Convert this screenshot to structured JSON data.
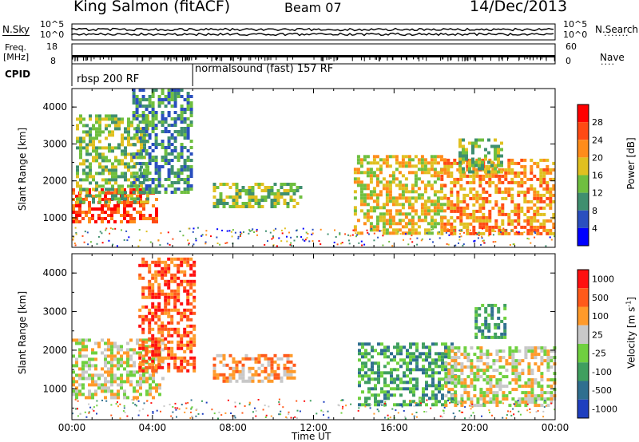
{
  "header": {
    "station": "King Salmon (fitACF)",
    "beam": "Beam 07",
    "date": "14/Dec/2013"
  },
  "chart_data": [
    {
      "type": "line",
      "panel": "noise",
      "left_label": "N.Sky",
      "right_label": "N.Search",
      "left_ticks": [
        "10^5",
        "10^0"
      ],
      "right_ticks": [
        "10^5",
        "10^0"
      ],
      "scale": "log"
    },
    {
      "type": "scatter",
      "panel": "frequency-nave",
      "left_label_line1": "Freq.",
      "left_label_line2": "[MHz]",
      "right_label": "Nave",
      "left_ticks": [
        "18",
        "8"
      ],
      "right_ticks": [
        "60",
        "0"
      ]
    },
    {
      "type": "table",
      "panel": "cpid",
      "label": "CPID",
      "segments": [
        {
          "label": "rbsp 200 RF",
          "start_hour": 0,
          "end_hour": 6
        },
        {
          "label": "normalsound (fast) 157 RF",
          "start_hour": 6,
          "end_hour": 24
        }
      ]
    },
    {
      "type": "heatmap",
      "panel": "power",
      "ylabel": "Slant Range [km]",
      "ylim": [
        200,
        4500
      ],
      "yticks": [
        "1000",
        "2000",
        "3000",
        "4000"
      ],
      "colorbar_label": "Power [dB]",
      "colorbar_ticks": [
        "4",
        "8",
        "12",
        "16",
        "20",
        "24",
        "28"
      ],
      "colors": [
        "#0000ff",
        "#2a4fbf",
        "#3f8f6f",
        "#6fbf3f",
        "#e0c020",
        "#ff8c1a",
        "#ff4a14",
        "#ff0000"
      ],
      "echo_regions": [
        {
          "t0": 0.0,
          "t1": 4.2,
          "r0": 850,
          "r1": 1800,
          "level": 6
        },
        {
          "t0": 0.2,
          "t1": 3.8,
          "r0": 1400,
          "r1": 3800,
          "level": 3
        },
        {
          "t0": 3.0,
          "t1": 6.0,
          "r0": 1700,
          "r1": 4500,
          "level": 2
        },
        {
          "t0": 7.0,
          "t1": 11.3,
          "r0": 1300,
          "r1": 1950,
          "level": 3
        },
        {
          "t0": 14.0,
          "t1": 18.5,
          "r0": 600,
          "r1": 2700,
          "level": 4
        },
        {
          "t0": 18.3,
          "t1": 24.0,
          "r0": 600,
          "r1": 2600,
          "level": 5
        },
        {
          "t0": 19.2,
          "t1": 21.3,
          "r0": 2200,
          "r1": 3150,
          "level": 3
        }
      ]
    },
    {
      "type": "heatmap",
      "panel": "velocity",
      "ylabel": "Slant Range [km]",
      "ylim": [
        200,
        4500
      ],
      "yticks": [
        "1000",
        "2000",
        "3000",
        "4000"
      ],
      "colorbar_label_main": "Velocity [m s",
      "colorbar_label_sup": "-1",
      "colorbar_label_end": "]",
      "colorbar_ticks": [
        "1000",
        "500",
        "100",
        "25",
        "-25",
        "-100",
        "-500",
        "-1000"
      ],
      "colors": [
        "#1f3fbf",
        "#2f6f8f",
        "#3f9f5f",
        "#6fd03f",
        "#c8c8c8",
        "#ff9a2a",
        "#ff5a1a",
        "#ff1010"
      ],
      "echo_regions": [
        {
          "t0": 0.0,
          "t1": 4.5,
          "r0": 800,
          "r1": 2300,
          "level": 4
        },
        {
          "t0": 3.3,
          "t1": 6.0,
          "r0": 1500,
          "r1": 4400,
          "level": 6
        },
        {
          "t0": 7.0,
          "t1": 11.0,
          "r0": 1200,
          "r1": 1900,
          "level": 5
        },
        {
          "t0": 14.2,
          "t1": 19.0,
          "r0": 600,
          "r1": 2200,
          "level": 2
        },
        {
          "t0": 18.5,
          "t1": 24.0,
          "r0": 600,
          "r1": 2100,
          "level": 4
        },
        {
          "t0": 20.0,
          "t1": 21.5,
          "r0": 2300,
          "r1": 3200,
          "level": 2
        }
      ]
    }
  ],
  "x_axis": {
    "label": "Time UT",
    "xlim": [
      0,
      24
    ],
    "ticks": [
      "00:00",
      "04:00",
      "08:00",
      "12:00",
      "16:00",
      "20:00",
      "00:00"
    ]
  }
}
